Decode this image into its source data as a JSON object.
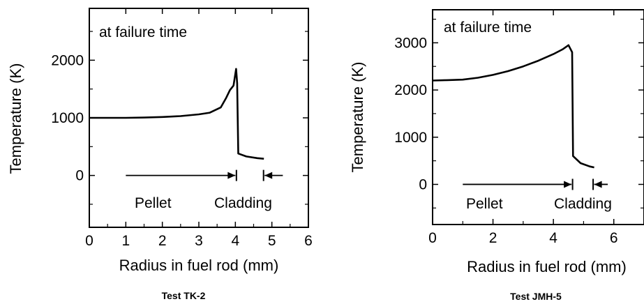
{
  "chart_data": [
    {
      "type": "line",
      "caption": "Test TK-2",
      "xlabel": "Radius in fuel rod (mm)",
      "ylabel": "Temperature (K)",
      "xlim": [
        0,
        6
      ],
      "ylim": [
        -900,
        2900
      ],
      "xticks": [
        "0",
        "1",
        "2",
        "3",
        "4",
        "5",
        "6"
      ],
      "yticks": [
        {
          "value": 0,
          "label": "0"
        },
        {
          "value": 1000,
          "label": "1000"
        },
        {
          "value": 2000,
          "label": "2000"
        }
      ],
      "annotation": "at failure time",
      "regions": {
        "pellet_label": "Pellet",
        "cladding_label": "Cladding",
        "pellet_arrow": {
          "x_from": 1.0,
          "x_to": 4.0,
          "y": 0
        },
        "cladding_arrow": {
          "x_from": 5.3,
          "x_to": 4.8,
          "y": 0
        }
      },
      "series": [
        {
          "x": [
            0,
            0.5,
            1.0,
            1.5,
            2.0,
            2.5,
            3.0,
            3.3,
            3.6,
            3.75,
            3.85,
            3.95,
            4.02,
            4.05,
            4.08,
            4.3,
            4.6,
            4.78
          ],
          "y": [
            1000,
            1000,
            1000,
            1005,
            1015,
            1030,
            1060,
            1090,
            1180,
            1350,
            1480,
            1560,
            1850,
            1600,
            380,
            330,
            300,
            290
          ]
        }
      ]
    },
    {
      "type": "line",
      "caption": "Test JMH-5",
      "xlabel": "Radius in fuel rod (mm)",
      "ylabel": "Temperature (K)",
      "xlim": [
        0,
        7
      ],
      "ylim": [
        -850,
        3700
      ],
      "xticks": [
        "0",
        "2",
        "4",
        "6"
      ],
      "xtick_values": [
        0,
        2,
        4,
        6
      ],
      "yticks": [
        {
          "value": 0,
          "label": "0"
        },
        {
          "value": 1000,
          "label": "1000"
        },
        {
          "value": 2000,
          "label": "2000"
        },
        {
          "value": 3000,
          "label": "3000"
        }
      ],
      "annotation": "at failure time",
      "regions": {
        "pellet_label": "Pellet",
        "cladding_label": "Cladding",
        "pellet_arrow": {
          "x_from": 1.0,
          "x_to": 4.6,
          "y": 0
        },
        "cladding_arrow": {
          "x_from": 5.8,
          "x_to": 5.35,
          "y": 0
        }
      },
      "series": [
        {
          "x": [
            0,
            0.5,
            1.0,
            1.5,
            2.0,
            2.5,
            3.0,
            3.5,
            4.0,
            4.3,
            4.5,
            4.62,
            4.65,
            4.9,
            5.2,
            5.35
          ],
          "y": [
            2200,
            2210,
            2220,
            2260,
            2320,
            2400,
            2500,
            2620,
            2760,
            2860,
            2950,
            2800,
            600,
            450,
            380,
            360
          ]
        }
      ]
    }
  ]
}
